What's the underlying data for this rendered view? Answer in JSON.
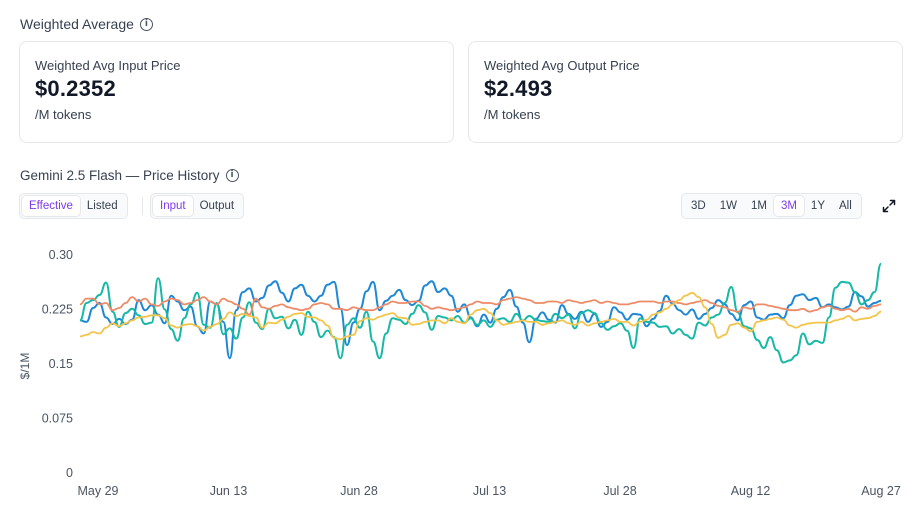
{
  "weighted": {
    "title": "Weighted Average",
    "input_label": "Weighted Avg Input Price",
    "input_value": "$0.2352",
    "input_unit": "/M tokens",
    "output_label": "Weighted Avg Output Price",
    "output_value": "$2.493",
    "output_unit": "/M tokens"
  },
  "chart_title": "Gemini 2.5 Flash — Price History",
  "price_toggle": {
    "options": [
      "Effective",
      "Listed"
    ],
    "selected": "Effective"
  },
  "direction_toggle": {
    "options": [
      "Input",
      "Output"
    ],
    "selected": "Input"
  },
  "range_toggle": {
    "options": [
      "3D",
      "1W",
      "1M",
      "3M",
      "1Y",
      "All"
    ],
    "selected": "3M"
  },
  "colors": {
    "accent": "#7c3aed",
    "blue": "#1e88d6",
    "teal": "#16b8a6",
    "orange": "#ee8a66",
    "yellow": "#f3c34a"
  },
  "chart_data": {
    "type": "line",
    "ylabel": "$/1M",
    "ylim": [
      0,
      0.3
    ],
    "yticks": [
      "0.30",
      "0.225",
      "0.15",
      "0.075",
      "0"
    ],
    "ytick_values": [
      0.3,
      0.225,
      0.15,
      0.075,
      0
    ],
    "xticks": [
      "May 29",
      "Jun 13",
      "Jun 28",
      "Jul 13",
      "Jul 28",
      "Aug 12",
      "Aug 27"
    ],
    "x_start": "May 29",
    "x_end": "Aug 27",
    "grid": false,
    "series": [
      {
        "color": "#1e88d6",
        "values": [
          0.21,
          0.208,
          0.227,
          0.234,
          0.214,
          0.205,
          0.212,
          0.205,
          0.211,
          0.238,
          0.224,
          0.231,
          0.218,
          0.206,
          0.244,
          0.236,
          0.224,
          0.229,
          0.202,
          0.192,
          0.236,
          0.232,
          0.208,
          0.158,
          0.224,
          0.249,
          0.254,
          0.236,
          0.241,
          0.258,
          0.264,
          0.248,
          0.236,
          0.254,
          0.259,
          0.244,
          0.236,
          0.244,
          0.259,
          0.263,
          0.226,
          0.176,
          0.207,
          0.226,
          0.25,
          0.263,
          0.224,
          0.237,
          0.244,
          0.252,
          0.238,
          0.231,
          0.237,
          0.258,
          0.264,
          0.249,
          0.254,
          0.244,
          0.222,
          0.232,
          0.214,
          0.202,
          0.218,
          0.207,
          0.226,
          0.242,
          0.252,
          0.229,
          0.207,
          0.18,
          0.212,
          0.221,
          0.211,
          0.207,
          0.231,
          0.219,
          0.212,
          0.222,
          0.208,
          0.219,
          0.201,
          0.208,
          0.228,
          0.221,
          0.211,
          0.219,
          0.218,
          0.202,
          0.212,
          0.223,
          0.244,
          0.233,
          0.224,
          0.218,
          0.225,
          0.212,
          0.219,
          0.227,
          0.238,
          0.232,
          0.219,
          0.21,
          0.231,
          0.236,
          0.214,
          0.211,
          0.218,
          0.219,
          0.213,
          0.231,
          0.244,
          0.246,
          0.238,
          0.241,
          0.228,
          0.232,
          0.228,
          0.225,
          0.229,
          0.249,
          0.243,
          0.229,
          0.234,
          0.237
        ]
      },
      {
        "color": "#16b8a6",
        "values": [
          0.21,
          0.234,
          0.238,
          0.245,
          0.262,
          0.222,
          0.201,
          0.22,
          0.226,
          0.217,
          0.205,
          0.207,
          0.268,
          0.225,
          0.198,
          0.182,
          0.213,
          0.232,
          0.248,
          0.204,
          0.2,
          0.234,
          0.191,
          0.199,
          0.185,
          0.214,
          0.235,
          0.207,
          0.198,
          0.226,
          0.213,
          0.215,
          0.199,
          0.211,
          0.19,
          0.222,
          0.208,
          0.187,
          0.196,
          0.187,
          0.158,
          0.204,
          0.213,
          0.2,
          0.222,
          0.181,
          0.158,
          0.192,
          0.213,
          0.211,
          0.205,
          0.219,
          0.231,
          0.221,
          0.197,
          0.216,
          0.214,
          0.21,
          0.216,
          0.207,
          0.213,
          0.204,
          0.21,
          0.201,
          0.211,
          0.213,
          0.208,
          0.219,
          0.21,
          0.216,
          0.211,
          0.209,
          0.208,
          0.219,
          0.213,
          0.218,
          0.199,
          0.22,
          0.224,
          0.22,
          0.206,
          0.197,
          0.202,
          0.206,
          0.196,
          0.172,
          0.213,
          0.208,
          0.207,
          0.201,
          0.202,
          0.192,
          0.198,
          0.19,
          0.185,
          0.207,
          0.203,
          0.214,
          0.218,
          0.234,
          0.256,
          0.221,
          0.202,
          0.199,
          0.183,
          0.172,
          0.187,
          0.169,
          0.152,
          0.155,
          0.162,
          0.192,
          0.177,
          0.182,
          0.179,
          0.214,
          0.255,
          0.263,
          0.262,
          0.249,
          0.232,
          0.238,
          0.249,
          0.288
        ]
      },
      {
        "color": "#ee8a66",
        "values": [
          0.232,
          0.24,
          0.24,
          0.232,
          0.234,
          0.224,
          0.227,
          0.234,
          0.242,
          0.236,
          0.24,
          0.232,
          0.23,
          0.236,
          0.24,
          0.238,
          0.232,
          0.234,
          0.238,
          0.242,
          0.236,
          0.232,
          0.24,
          0.236,
          0.232,
          0.226,
          0.218,
          0.24,
          0.228,
          0.226,
          0.23,
          0.232,
          0.228,
          0.226,
          0.224,
          0.226,
          0.232,
          0.234,
          0.232,
          0.226,
          0.226,
          0.224,
          0.228,
          0.226,
          0.224,
          0.224,
          0.228,
          0.232,
          0.236,
          0.234,
          0.234,
          0.236,
          0.236,
          0.23,
          0.226,
          0.228,
          0.226,
          0.224,
          0.226,
          0.228,
          0.232,
          0.236,
          0.234,
          0.234,
          0.232,
          0.238,
          0.24,
          0.242,
          0.24,
          0.238,
          0.234,
          0.234,
          0.236,
          0.236,
          0.234,
          0.238,
          0.236,
          0.234,
          0.236,
          0.238,
          0.234,
          0.236,
          0.234,
          0.232,
          0.232,
          0.234,
          0.236,
          0.236,
          0.236,
          0.234,
          0.236,
          0.236,
          0.234,
          0.232,
          0.234,
          0.236,
          0.238,
          0.234,
          0.23,
          0.228,
          0.224,
          0.222,
          0.228,
          0.226,
          0.232,
          0.232,
          0.23,
          0.228,
          0.226,
          0.224,
          0.224,
          0.226,
          0.222,
          0.224,
          0.228,
          0.23,
          0.226,
          0.224,
          0.226,
          0.222,
          0.228,
          0.226,
          0.23,
          0.232
        ]
      },
      {
        "color": "#f3c34a",
        "values": [
          0.188,
          0.19,
          0.194,
          0.192,
          0.2,
          0.206,
          0.202,
          0.206,
          0.21,
          0.214,
          0.215,
          0.217,
          0.217,
          0.213,
          0.203,
          0.2,
          0.204,
          0.205,
          0.202,
          0.196,
          0.201,
          0.205,
          0.212,
          0.221,
          0.216,
          0.219,
          0.216,
          0.214,
          0.2,
          0.207,
          0.206,
          0.211,
          0.215,
          0.219,
          0.22,
          0.215,
          0.214,
          0.21,
          0.203,
          0.186,
          0.184,
          0.188,
          0.19,
          0.209,
          0.213,
          0.211,
          0.215,
          0.218,
          0.22,
          0.214,
          0.213,
          0.204,
          0.205,
          0.208,
          0.21,
          0.21,
          0.206,
          0.213,
          0.208,
          0.206,
          0.218,
          0.224,
          0.226,
          0.22,
          0.21,
          0.204,
          0.206,
          0.208,
          0.21,
          0.208,
          0.208,
          0.204,
          0.206,
          0.208,
          0.21,
          0.206,
          0.204,
          0.208,
          0.203,
          0.206,
          0.208,
          0.21,
          0.212,
          0.208,
          0.208,
          0.203,
          0.208,
          0.211,
          0.218,
          0.221,
          0.226,
          0.232,
          0.238,
          0.244,
          0.248,
          0.242,
          0.228,
          0.205,
          0.186,
          0.19,
          0.204,
          0.206,
          0.2,
          0.195,
          0.208,
          0.21,
          0.212,
          0.214,
          0.211,
          0.203,
          0.2,
          0.204,
          0.206,
          0.207,
          0.207,
          0.207,
          0.21,
          0.212,
          0.216,
          0.21,
          0.212,
          0.213,
          0.216,
          0.222
        ]
      }
    ]
  }
}
